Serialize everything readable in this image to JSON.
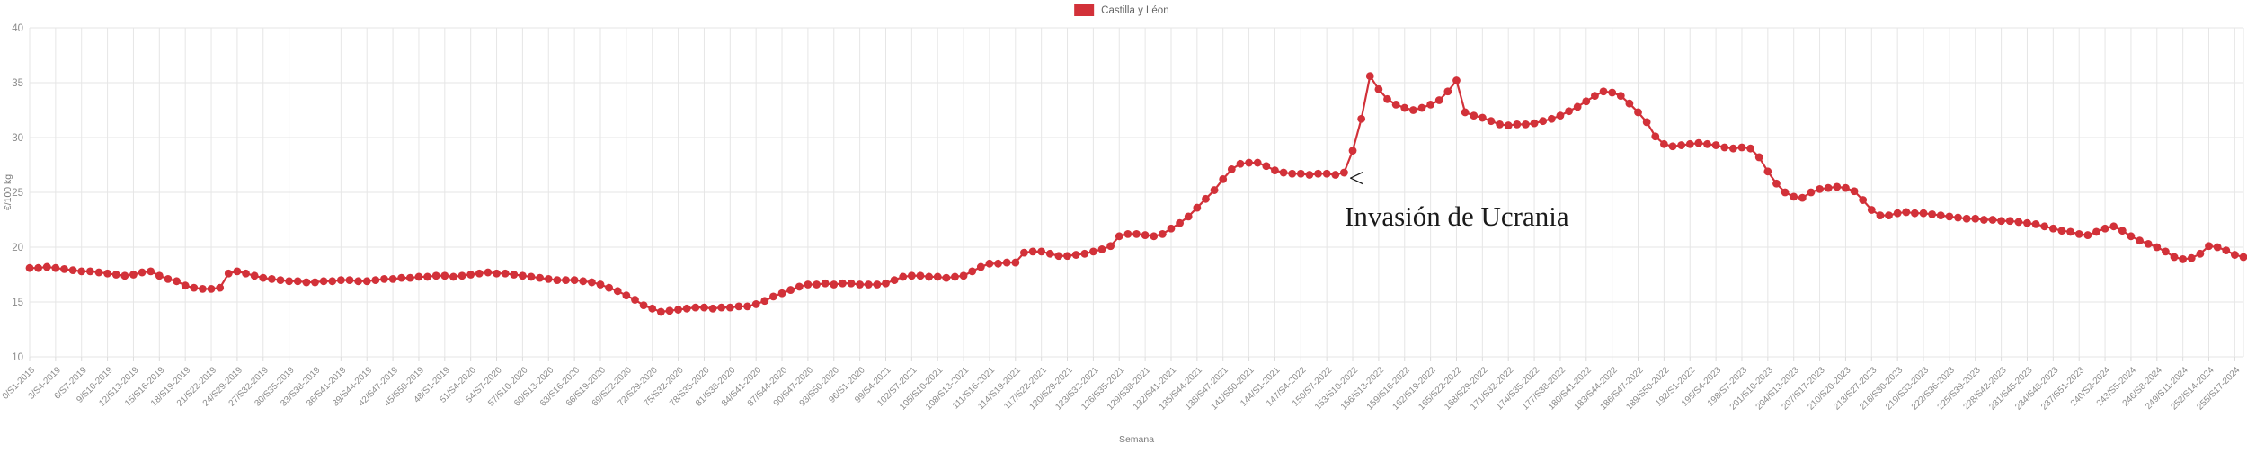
{
  "legend": {
    "label": "Castilla y Léon",
    "color": "#d23139"
  },
  "annotation": {
    "marker": "<",
    "text": "Invasión de Ucrania"
  },
  "chart_data": {
    "type": "line",
    "title": "",
    "xlabel": "Semana",
    "ylabel": "€/100 kg",
    "ylim": [
      10,
      40
    ],
    "yticks": [
      10,
      15,
      20,
      25,
      30,
      35,
      40
    ],
    "grid": true,
    "legend_position": "top-center",
    "point_style": "filled-circle",
    "line_color": "#d23139",
    "x_tick_every": 3,
    "x_tick_labels": [
      "0/S1-2018",
      "3/S4-2019",
      "6/S7-2019",
      "9/S10-2019",
      "12/S13-2019",
      "15/S16-2019",
      "18/S19-2019",
      "21/S22-2019",
      "24/S29-2019",
      "27/S32-2019",
      "30/S35-2019",
      "33/S38-2019",
      "36/S41-2019",
      "39/S44-2019",
      "42/S47-2019",
      "45/S50-2019",
      "48/S1-2019",
      "51/S4-2020",
      "54/S7-2020",
      "57/S10-2020",
      "60/S13-2020",
      "63/S16-2020",
      "66/S19-2020",
      "69/S22-2020",
      "72/S29-2020",
      "75/S32-2020",
      "78/S35-2020",
      "81/S38-2020",
      "84/S41-2020",
      "87/S44-2020",
      "90/S47-2020",
      "93/S50-2020",
      "96/S1-2020",
      "99/S4-2021",
      "102/S7-2021",
      "105/S10-2021",
      "108/S13-2021",
      "111/S16-2021",
      "114/S19-2021",
      "117/S22-2021",
      "120/S29-2021",
      "123/S32-2021",
      "126/S35-2021",
      "129/S38-2021",
      "132/S41-2021",
      "135/S44-2021",
      "138/S47-2021",
      "141/S50-2021",
      "144/S1-2021",
      "147/S4-2022",
      "150/S7-2022",
      "153/S10-2022",
      "156/S13-2022",
      "159/S16-2022",
      "162/S19-2022",
      "165/S22-2022",
      "168/S29-2022",
      "171/S32-2022",
      "174/S35-2022",
      "177/S38-2022",
      "180/S41-2022",
      "183/S44-2022",
      "186/S47-2022",
      "189/S50-2022",
      "192/S1-2022",
      "195/S4-2023",
      "198/S7-2023",
      "201/S10-2023",
      "204/S13-2023",
      "207/S17-2023",
      "210/S20-2023",
      "213/S27-2023",
      "216/S30-2023",
      "219/S33-2023",
      "222/S36-2023",
      "225/S39-2023",
      "228/S42-2023",
      "231/S45-2023",
      "234/S48-2023",
      "237/S51-2023",
      "240/S2-2024",
      "243/S5-2024",
      "246/S8-2024",
      "249/S11-2024",
      "252/S14-2024",
      "255/S17-2024"
    ],
    "series": [
      {
        "name": "Castilla y Léon",
        "color": "#d23139",
        "values": [
          18.1,
          18.1,
          18.2,
          18.1,
          18.0,
          17.9,
          17.8,
          17.8,
          17.7,
          17.6,
          17.5,
          17.4,
          17.5,
          17.7,
          17.8,
          17.4,
          17.1,
          16.9,
          16.5,
          16.3,
          16.2,
          16.2,
          16.3,
          17.6,
          17.8,
          17.6,
          17.4,
          17.2,
          17.1,
          17.0,
          16.9,
          16.9,
          16.8,
          16.8,
          16.9,
          16.9,
          17.0,
          17.0,
          16.9,
          16.9,
          17.0,
          17.1,
          17.1,
          17.2,
          17.2,
          17.3,
          17.3,
          17.4,
          17.4,
          17.3,
          17.4,
          17.5,
          17.6,
          17.7,
          17.6,
          17.6,
          17.5,
          17.4,
          17.3,
          17.2,
          17.1,
          17.0,
          17.0,
          17.0,
          16.9,
          16.8,
          16.6,
          16.3,
          16.0,
          15.6,
          15.2,
          14.7,
          14.4,
          14.1,
          14.2,
          14.3,
          14.4,
          14.5,
          14.5,
          14.4,
          14.5,
          14.5,
          14.6,
          14.6,
          14.8,
          15.1,
          15.5,
          15.8,
          16.1,
          16.4,
          16.6,
          16.6,
          16.7,
          16.6,
          16.7,
          16.7,
          16.6,
          16.6,
          16.6,
          16.7,
          17.0,
          17.3,
          17.4,
          17.4,
          17.3,
          17.3,
          17.2,
          17.3,
          17.4,
          17.8,
          18.2,
          18.5,
          18.5,
          18.6,
          18.6,
          19.5,
          19.6,
          19.6,
          19.4,
          19.2,
          19.2,
          19.3,
          19.4,
          19.6,
          19.8,
          20.1,
          21.0,
          21.2,
          21.2,
          21.1,
          21.0,
          21.2,
          21.7,
          22.2,
          22.8,
          23.6,
          24.4,
          25.2,
          26.2,
          27.1,
          27.6,
          27.7,
          27.7,
          27.4,
          27.0,
          26.8,
          26.7,
          26.7,
          26.6,
          26.7,
          26.7,
          26.6,
          26.8,
          28.8,
          31.7,
          35.6,
          34.4,
          33.5,
          33.0,
          32.7,
          32.5,
          32.7,
          33.0,
          33.4,
          34.2,
          35.2,
          32.3,
          32.0,
          31.8,
          31.5,
          31.2,
          31.1,
          31.2,
          31.2,
          31.3,
          31.5,
          31.7,
          32.0,
          32.4,
          32.8,
          33.3,
          33.8,
          34.2,
          34.1,
          33.8,
          33.1,
          32.3,
          31.4,
          30.1,
          29.4,
          29.2,
          29.3,
          29.4,
          29.5,
          29.4,
          29.3,
          29.1,
          29.0,
          29.1,
          29.0,
          28.2,
          26.9,
          25.8,
          25.0,
          24.6,
          24.5,
          25.0,
          25.3,
          25.4,
          25.5,
          25.4,
          25.1,
          24.3,
          23.4,
          22.9,
          22.9,
          23.1,
          23.2,
          23.1,
          23.1,
          23.0,
          22.9,
          22.8,
          22.7,
          22.6,
          22.6,
          22.5,
          22.5,
          22.4,
          22.4,
          22.3,
          22.2,
          22.1,
          21.9,
          21.7,
          21.5,
          21.4,
          21.2,
          21.1,
          21.4,
          21.7,
          21.9,
          21.5,
          21.0,
          20.6,
          20.3,
          20.0,
          19.6,
          19.1,
          18.9,
          19.0,
          19.4,
          20.1,
          20.0,
          19.7,
          19.3,
          19.1
        ]
      }
    ]
  }
}
